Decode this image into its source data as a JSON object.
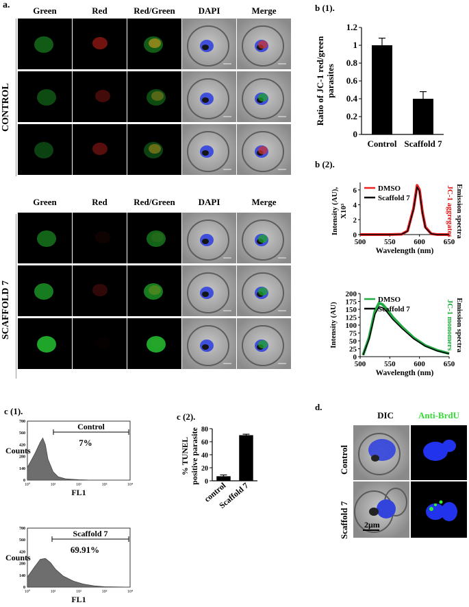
{
  "panel_a": {
    "label": "a.",
    "col_headers": [
      "Green",
      "Red",
      "Red/Green",
      "DAPI",
      "Merge"
    ],
    "group_labels": [
      "CONTROL",
      "SCAFFOLD 7"
    ]
  },
  "panel_b1": {
    "label": "b (1)."
  },
  "panel_b2": {
    "label": "b (2)."
  },
  "panel_c1": {
    "label": "c (1)."
  },
  "panel_c2": {
    "label": "c (2)."
  },
  "panel_d": {
    "label": "d.",
    "col_headers": [
      "DIC",
      "Anti-BrdU"
    ],
    "row_labels": [
      "Control",
      "Scaffold 7"
    ],
    "scale_label": "2μm",
    "anti_brdu_color": "#33dd33"
  },
  "chart_data": [
    {
      "id": "b1",
      "type": "bar",
      "categories": [
        "Control",
        "Scaffold 7"
      ],
      "values": [
        1.0,
        0.4
      ],
      "errors": [
        0.08,
        0.08
      ],
      "ylabel": "Ratio of JC-1 red/green parasites",
      "ylim": [
        0,
        1.2
      ],
      "yticks": [
        "0",
        "0.2",
        "0.4",
        "0.6",
        "0.8",
        "1",
        "1.2"
      ]
    },
    {
      "id": "b2_top",
      "type": "line",
      "x": [
        500,
        550,
        570,
        580,
        590,
        596,
        600,
        605,
        610,
        620,
        630,
        650
      ],
      "series": [
        {
          "name": "DMSO",
          "color": "#ee2222",
          "values": [
            0,
            0,
            0.05,
            0.5,
            3.5,
            6.6,
            6.0,
            3.0,
            1.0,
            0.1,
            0,
            0
          ]
        },
        {
          "name": "Scaffold 7",
          "color": "#000000",
          "values": [
            0,
            0,
            0.05,
            0.45,
            3.4,
            6.4,
            5.8,
            2.9,
            0.9,
            0.1,
            0,
            0
          ]
        }
      ],
      "xlabel": "Wavelength (nm)",
      "ylabel": "Intensity (AU), X10³",
      "side_label": "Emission spectra",
      "side_sublabel": "JC-1 aggregates",
      "side_sublabel_color": "#dd1111",
      "xlim": [
        500,
        650
      ],
      "ylim": [
        0,
        7
      ],
      "xticks": [
        "500",
        "550",
        "600",
        "650"
      ],
      "yticks": [
        "0",
        "2",
        "4",
        "6"
      ]
    },
    {
      "id": "b2_bottom",
      "type": "line",
      "x": [
        505,
        515,
        525,
        532,
        538,
        545,
        555,
        570,
        590,
        610,
        630,
        650
      ],
      "series": [
        {
          "name": "DMSO",
          "color": "#22aa44",
          "values": [
            5,
            60,
            145,
            170,
            165,
            150,
            125,
            95,
            60,
            35,
            20,
            10
          ]
        },
        {
          "name": "Scaffold 7",
          "color": "#000000",
          "values": [
            5,
            55,
            135,
            158,
            155,
            142,
            118,
            90,
            57,
            33,
            18,
            9
          ]
        }
      ],
      "xlabel": "Wavelength (nm)",
      "ylabel": "Intensity (AU)",
      "side_label": "Emission spectra",
      "side_sublabel": "JC-1 monomers",
      "side_sublabel_color": "#11aa33",
      "xlim": [
        500,
        650
      ],
      "ylim": [
        0,
        200
      ],
      "xticks": [
        "500",
        "550",
        "600",
        "650"
      ],
      "yticks": [
        "0",
        "25",
        "50",
        "75",
        "100",
        "125",
        "150",
        "175",
        "200"
      ]
    },
    {
      "id": "c1_top",
      "type": "area",
      "marker_label": "Control",
      "percent": "7%",
      "xlabel": "FL1",
      "ylabel": "Counts",
      "yticks": [
        "0",
        "140",
        "280",
        "420",
        "560",
        "700"
      ],
      "xticks": [
        "10⁰",
        "10¹",
        "10²",
        "10³",
        "10⁴"
      ],
      "x": [
        0,
        0.3,
        0.5,
        0.6,
        0.7,
        0.8,
        1.0,
        1.2,
        1.5,
        2.0,
        2.5,
        4.0
      ],
      "values": [
        150,
        320,
        450,
        500,
        420,
        250,
        100,
        40,
        15,
        5,
        0,
        0
      ],
      "ylim": [
        0,
        700
      ],
      "xlim": [
        0,
        4
      ]
    },
    {
      "id": "c1_bottom",
      "type": "area",
      "marker_label": "Scaffold 7",
      "percent": "69.91%",
      "xlabel": "FL1",
      "ylabel": "Counts",
      "yticks": [
        "0",
        "140",
        "280",
        "420",
        "560",
        "700"
      ],
      "xticks": [
        "10⁰",
        "10¹",
        "10²",
        "10³",
        "10⁴"
      ],
      "x": [
        0,
        0.3,
        0.5,
        0.7,
        0.9,
        1.1,
        1.4,
        1.8,
        2.2,
        2.6,
        3.0,
        4.0
      ],
      "values": [
        120,
        250,
        330,
        340,
        290,
        210,
        130,
        70,
        35,
        15,
        5,
        0
      ],
      "ylim": [
        0,
        700
      ],
      "xlim": [
        0,
        4
      ]
    },
    {
      "id": "c2",
      "type": "bar",
      "categories": [
        "control",
        "Scaffold 7"
      ],
      "values": [
        7,
        70
      ],
      "errors": [
        2,
        1.5
      ],
      "ylabel": "% TUNEL positive parasite",
      "ylim": [
        0,
        80
      ],
      "yticks": [
        "0",
        "20",
        "40",
        "60",
        "80"
      ]
    }
  ]
}
